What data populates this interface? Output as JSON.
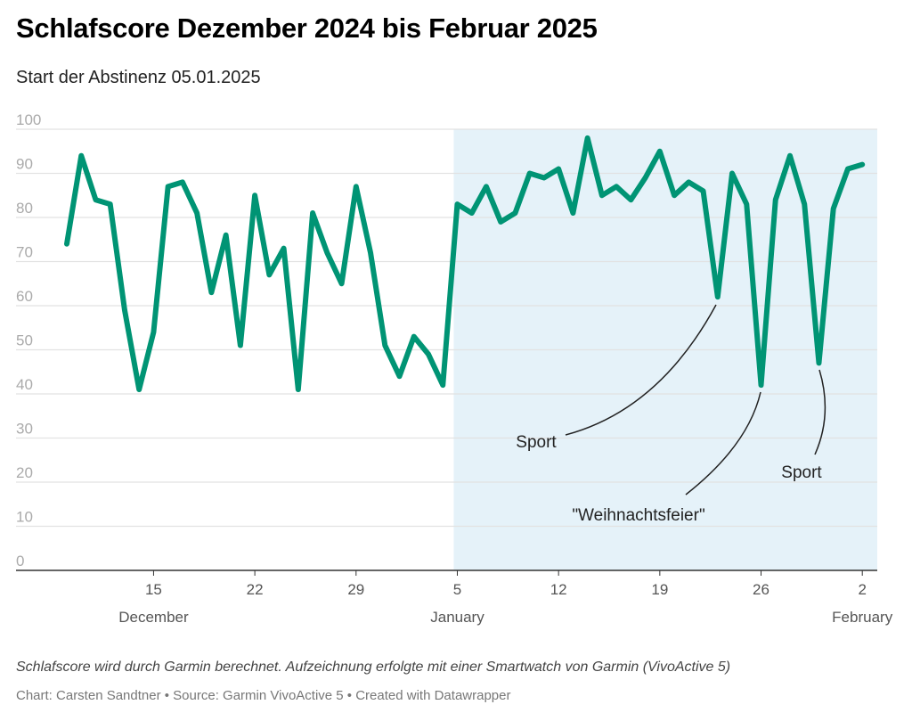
{
  "title": "Schlafscore Dezember 2024 bis Februar 2025",
  "subtitle": "Start der Abstinenz 05.01.2025",
  "note": "Schlafscore wird durch Garmin berechnet. Aufzeichnung erfolgte mit einer Smartwatch von Garmin (VivoActive 5)",
  "credit": "Chart: Carsten Sandtner • Source: Garmin VivoActive 5 • Created with Datawrapper",
  "colors": {
    "line": "#009474",
    "highlight": "#e5f2f9"
  },
  "chart_data": {
    "type": "line",
    "title": "Schlafscore Dezember 2024 bis Februar 2025",
    "ylim": [
      0,
      100
    ],
    "yticks": [
      "0",
      "10",
      "20",
      "30",
      "40",
      "50",
      "60",
      "70",
      "80",
      "90",
      "100"
    ],
    "xticks": [
      {
        "day": 6,
        "label": "15",
        "sub": "December"
      },
      {
        "day": 13,
        "label": "22",
        "sub": ""
      },
      {
        "day": 20,
        "label": "29",
        "sub": ""
      },
      {
        "day": 27,
        "label": "5",
        "sub": "January"
      },
      {
        "day": 34,
        "label": "12",
        "sub": ""
      },
      {
        "day": 41,
        "label": "19",
        "sub": ""
      },
      {
        "day": 48,
        "label": "26",
        "sub": ""
      },
      {
        "day": 55,
        "label": "2",
        "sub": "February"
      }
    ],
    "start_date": "2024-12-09",
    "highlight_from_day": 26.75,
    "series": [
      {
        "name": "Schlafscore",
        "values": [
          74,
          94,
          84,
          83,
          59,
          41,
          54,
          87,
          88,
          81,
          63,
          76,
          51,
          85,
          67,
          73,
          41,
          81,
          72,
          65,
          87,
          72,
          51,
          44,
          53,
          49,
          42,
          83,
          81,
          87,
          79,
          81,
          90,
          89,
          91,
          81,
          98,
          85,
          87,
          84,
          89,
          95,
          85,
          88,
          86,
          62,
          90,
          83,
          42,
          84,
          94,
          83,
          47,
          82,
          91,
          92
        ]
      }
    ],
    "annotations": [
      {
        "text": "Sport",
        "day": 45
      },
      {
        "text": "\"Weihnachtsfeier\"",
        "day": 48
      },
      {
        "text": "Sport",
        "day": 52
      }
    ]
  }
}
